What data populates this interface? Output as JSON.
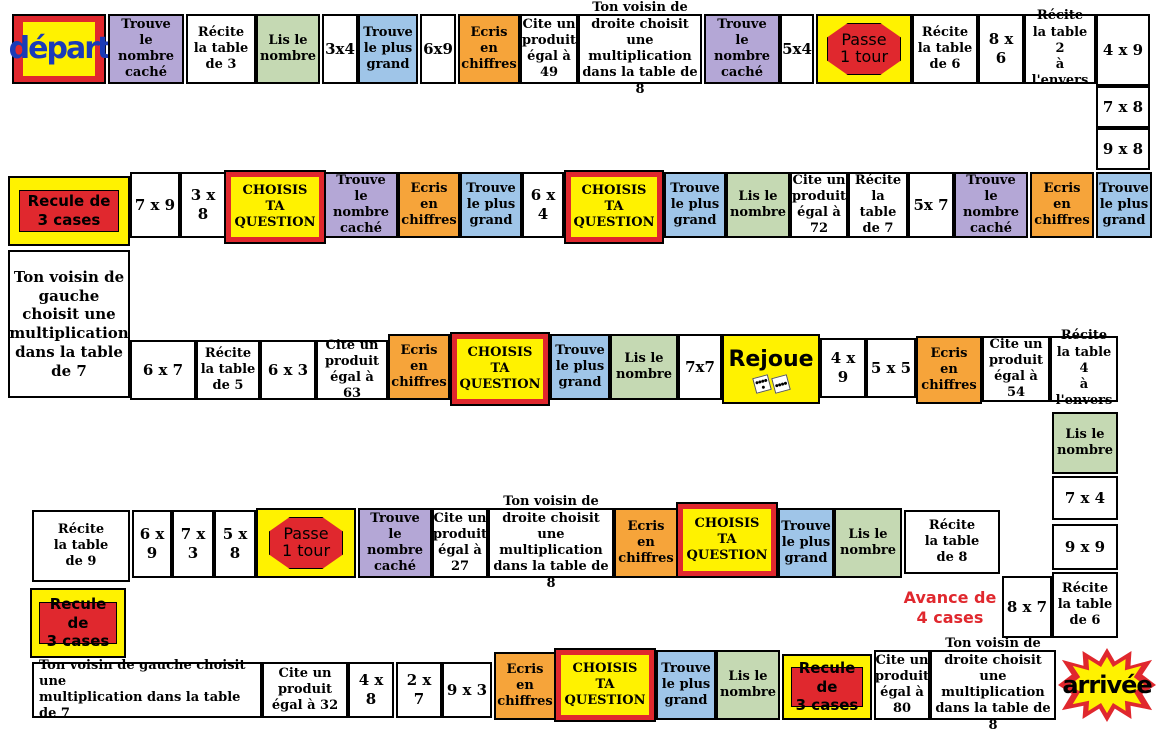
{
  "board": {
    "cells": [
      {
        "id": "depart",
        "text": "départ",
        "kind": "start",
        "color": "#e0282e"
      },
      {
        "id": "c1",
        "text": "Trouve\nle nombre\ncaché",
        "kind": "purple"
      },
      {
        "id": "c2",
        "text": "Récite\nla table\nde 3",
        "kind": "white"
      },
      {
        "id": "c3",
        "text": "Lis le\nnombre",
        "kind": "green"
      },
      {
        "id": "c4",
        "text": "3x4",
        "kind": "white"
      },
      {
        "id": "c5",
        "text": "Trouve\nle plus\ngrand",
        "kind": "blue"
      },
      {
        "id": "c6",
        "text": "6x9",
        "kind": "white"
      },
      {
        "id": "c7",
        "text": "Ecris\nen\nchiffres",
        "kind": "orange"
      },
      {
        "id": "c8",
        "text": "Cite un\nproduit\négal à\n49",
        "kind": "white"
      },
      {
        "id": "c9",
        "text": "Ton voisin de\ndroite choisit une\nmultiplication\ndans la table de 8",
        "kind": "white"
      },
      {
        "id": "c10",
        "text": "Trouve\nle nombre\ncaché",
        "kind": "purple"
      },
      {
        "id": "c11",
        "text": "5x4",
        "kind": "white"
      },
      {
        "id": "c12",
        "text": "Passe\n1 tour",
        "kind": "passe"
      },
      {
        "id": "c13",
        "text": "Récite\nla table\nde 6",
        "kind": "white"
      },
      {
        "id": "c14",
        "text": "8 x 6",
        "kind": "white"
      },
      {
        "id": "c15",
        "text": "Récite\nla table 2\nà l'envers",
        "kind": "white"
      },
      {
        "id": "c16",
        "text": "4 x 9",
        "kind": "white"
      },
      {
        "id": "c17",
        "text": "7 x 8",
        "kind": "white"
      },
      {
        "id": "c18",
        "text": "9 x 8",
        "kind": "white"
      },
      {
        "id": "c19",
        "text": "Trouve\nle plus\ngrand",
        "kind": "blue"
      },
      {
        "id": "c20",
        "text": "Ecris\nen\nchiffres",
        "kind": "orange"
      },
      {
        "id": "c21",
        "text": "Trouve\nle nombre\ncaché",
        "kind": "purple"
      },
      {
        "id": "c22",
        "text": "5x 7",
        "kind": "white"
      },
      {
        "id": "c23",
        "text": "Récite\nla table\nde 7",
        "kind": "white"
      },
      {
        "id": "c24",
        "text": "Cite un\nproduit\négal à\n72",
        "kind": "white"
      },
      {
        "id": "c25",
        "text": "Lis le\nnombre",
        "kind": "green"
      },
      {
        "id": "c26",
        "text": "Trouve\nle plus\ngrand",
        "kind": "blue"
      },
      {
        "id": "c27",
        "text": "CHOISIS\nTA\nQUESTION",
        "kind": "choisis"
      },
      {
        "id": "c28",
        "text": "6 x 4",
        "kind": "white"
      },
      {
        "id": "c29",
        "text": "Trouve\nle plus\ngrand",
        "kind": "blue"
      },
      {
        "id": "c30",
        "text": "Ecris\nen\nchiffres",
        "kind": "orange"
      },
      {
        "id": "c31",
        "text": "Trouve\nle nombre\ncaché",
        "kind": "purple"
      },
      {
        "id": "c32",
        "text": "CHOISIS\nTA\nQUESTION",
        "kind": "choisis"
      },
      {
        "id": "c33",
        "text": "3 x 8",
        "kind": "white"
      },
      {
        "id": "c34",
        "text": "7 x 9",
        "kind": "white"
      },
      {
        "id": "c35",
        "text": "Recule de\n3 cases",
        "kind": "recule"
      },
      {
        "id": "c36",
        "text": "Ton voisin de\ngauche\nchoisit une\nmultiplication\ndans la table\nde 7",
        "kind": "white"
      },
      {
        "id": "c37",
        "text": "6 x 7",
        "kind": "white"
      },
      {
        "id": "c38",
        "text": "Récite\nla table\nde 5",
        "kind": "white"
      },
      {
        "id": "c39",
        "text": "6 x 3",
        "kind": "white"
      },
      {
        "id": "c40",
        "text": "Cite un\nproduit\négal à 63",
        "kind": "white"
      },
      {
        "id": "c41",
        "text": "Ecris\nen\nchiffres",
        "kind": "orange"
      },
      {
        "id": "c42",
        "text": "CHOISIS\nTA\nQUESTION",
        "kind": "choisis"
      },
      {
        "id": "c43",
        "text": "Trouve\nle plus\ngrand",
        "kind": "blue"
      },
      {
        "id": "c44",
        "text": "Lis le\nnombre",
        "kind": "green"
      },
      {
        "id": "c45",
        "text": "7x7",
        "kind": "white"
      },
      {
        "id": "c46",
        "text": "Rejoue",
        "kind": "rejoue"
      },
      {
        "id": "c47",
        "text": "4 x 9",
        "kind": "white"
      },
      {
        "id": "c48",
        "text": "5 x 5",
        "kind": "white"
      },
      {
        "id": "c49",
        "text": "Ecris\nen\nchiffres",
        "kind": "orange"
      },
      {
        "id": "c50",
        "text": "Cite un\nproduit\négal à 54",
        "kind": "white"
      },
      {
        "id": "c51",
        "text": "Récite\nla table 4\nà l'envers",
        "kind": "white"
      },
      {
        "id": "c52",
        "text": "Lis le\nnombre",
        "kind": "green"
      },
      {
        "id": "c53",
        "text": "7 x 4",
        "kind": "white"
      },
      {
        "id": "c54",
        "text": "9 x 9",
        "kind": "white"
      },
      {
        "id": "c55",
        "text": "Récite\nla table\nde 6",
        "kind": "white"
      },
      {
        "id": "c56",
        "text": "8 x 7",
        "kind": "white"
      },
      {
        "id": "c57",
        "text": "Avance de\n4 cases",
        "kind": "avance"
      },
      {
        "id": "c58",
        "text": "Récite\nla table\nde 8",
        "kind": "white"
      },
      {
        "id": "c59",
        "text": "Lis le\nnombre",
        "kind": "green"
      },
      {
        "id": "c60",
        "text": "Trouve\nle plus\ngrand",
        "kind": "blue"
      },
      {
        "id": "c61",
        "text": "CHOISIS\nTA\nQUESTION",
        "kind": "choisis"
      },
      {
        "id": "c62",
        "text": "Ecris\nen\nchiffres",
        "kind": "orange"
      },
      {
        "id": "c63",
        "text": "Ton voisin de\ndroite choisit une\nmultiplication\ndans la table de 8",
        "kind": "white"
      },
      {
        "id": "c64",
        "text": "Cite un\nproduit\négal à\n27",
        "kind": "white"
      },
      {
        "id": "c65",
        "text": "Trouve\nle nombre\ncaché",
        "kind": "purple"
      },
      {
        "id": "c66",
        "text": "Passe\n1 tour",
        "kind": "passe"
      },
      {
        "id": "c67",
        "text": "5 x 8",
        "kind": "white"
      },
      {
        "id": "c68",
        "text": "7 x 3",
        "kind": "white"
      },
      {
        "id": "c69",
        "text": "6 x 9",
        "kind": "white"
      },
      {
        "id": "c70",
        "text": "Récite\nla table\nde 9",
        "kind": "white"
      },
      {
        "id": "c71",
        "text": "Recule de\n3 cases",
        "kind": "recule"
      },
      {
        "id": "c72",
        "text": "Ton voisin de gauche choisit une\nmultiplication dans la table de 7",
        "kind": "white"
      },
      {
        "id": "c73",
        "text": "Cite un\nproduit\négal à 32",
        "kind": "white"
      },
      {
        "id": "c74",
        "text": "4 x 8",
        "kind": "white"
      },
      {
        "id": "c75",
        "text": "2 x 7",
        "kind": "white"
      },
      {
        "id": "c76",
        "text": "9 x 3",
        "kind": "white"
      },
      {
        "id": "c77",
        "text": "Ecris\nen\nchiffres",
        "kind": "orange"
      },
      {
        "id": "c78",
        "text": "CHOISIS\nTA\nQUESTION",
        "kind": "choisis"
      },
      {
        "id": "c79",
        "text": "Trouve\nle plus\ngrand",
        "kind": "blue"
      },
      {
        "id": "c80",
        "text": "Lis le\nnombre",
        "kind": "green"
      },
      {
        "id": "c81",
        "text": "Recule de\n3 cases",
        "kind": "recule"
      },
      {
        "id": "c82",
        "text": "Cite un\nproduit\négal à\n80",
        "kind": "white"
      },
      {
        "id": "c83",
        "text": "Ton voisin de\ndroite choisit une\nmultiplication\ndans la table de 8",
        "kind": "white"
      },
      {
        "id": "arrivee",
        "text": "arrivée",
        "kind": "finish"
      }
    ]
  },
  "colors": {
    "purple": "#b4a7d6",
    "green": "#c5d9b3",
    "blue": "#9fc5e8",
    "orange": "#f6a43a",
    "yellow": "#fff200",
    "red": "#e0282e",
    "depart_text": "#1a3bb8"
  }
}
